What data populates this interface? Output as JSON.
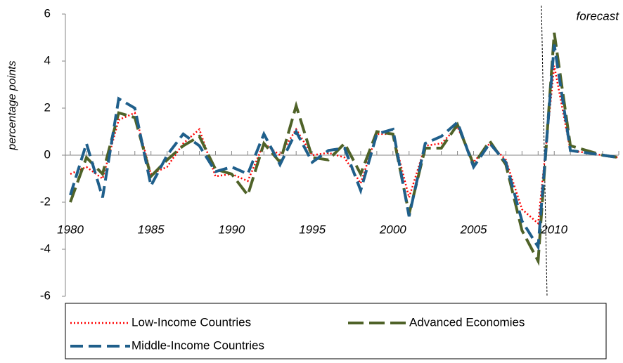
{
  "chart_data": {
    "type": "line",
    "y_label": "percentage points",
    "annotation": "forecast",
    "x": [
      1980,
      1981,
      1982,
      1983,
      1984,
      1985,
      1986,
      1987,
      1988,
      1989,
      1990,
      1991,
      1992,
      1993,
      1994,
      1995,
      1996,
      1997,
      1998,
      1999,
      2000,
      2001,
      2002,
      2003,
      2004,
      2005,
      2006,
      2007,
      2008,
      2009,
      2010,
      2011,
      2012,
      2013,
      2014
    ],
    "xlim": [
      1980,
      2014
    ],
    "xticks": [
      1980,
      1985,
      1990,
      1995,
      2000,
      2005,
      2010
    ],
    "ylim": [
      -6,
      6
    ],
    "yticks": [
      -6,
      -4,
      -2,
      0,
      2,
      4,
      6
    ],
    "series": [
      {
        "name": "Low-Income Countries",
        "color": "#ff0000",
        "values": [
          -0.8,
          -0.5,
          -1.0,
          1.5,
          1.8,
          -0.8,
          -0.5,
          0.5,
          1.1,
          -0.9,
          -0.8,
          -1.1,
          0.5,
          0.0,
          1.1,
          0.0,
          0.1,
          -0.1,
          -1.2,
          0.9,
          0.9,
          -1.8,
          0.4,
          0.5,
          1.2,
          -0.3,
          0.5,
          -0.2,
          -2.3,
          -2.9,
          3.8,
          0.2,
          0.1,
          0.0,
          -0.1
        ]
      },
      {
        "name": "Advanced Economies",
        "color": "#4f6228",
        "values": [
          -2.0,
          -0.1,
          -0.8,
          1.8,
          1.6,
          -0.9,
          -0.2,
          0.4,
          0.8,
          -0.6,
          -0.8,
          -1.7,
          0.5,
          -0.3,
          2.1,
          -0.1,
          -0.2,
          0.5,
          -0.8,
          1.0,
          0.9,
          -2.5,
          0.3,
          0.3,
          1.3,
          -0.4,
          0.6,
          -0.4,
          -3.2,
          -4.5,
          5.2,
          0.4,
          0.2,
          0.0,
          -0.1
        ]
      },
      {
        "name": "Middle-Income Countries",
        "color": "#1f5f8b",
        "values": [
          -1.7,
          0.5,
          -1.8,
          2.4,
          2.0,
          -1.3,
          0.0,
          0.9,
          0.4,
          -0.7,
          -0.5,
          -0.8,
          0.9,
          -0.4,
          1.0,
          -0.3,
          0.2,
          0.3,
          -1.5,
          0.9,
          1.1,
          -2.6,
          0.5,
          0.8,
          1.4,
          -0.5,
          0.5,
          -0.3,
          -2.8,
          -3.9,
          4.7,
          0.2,
          0.1,
          0.0,
          -0.1
        ]
      }
    ]
  }
}
